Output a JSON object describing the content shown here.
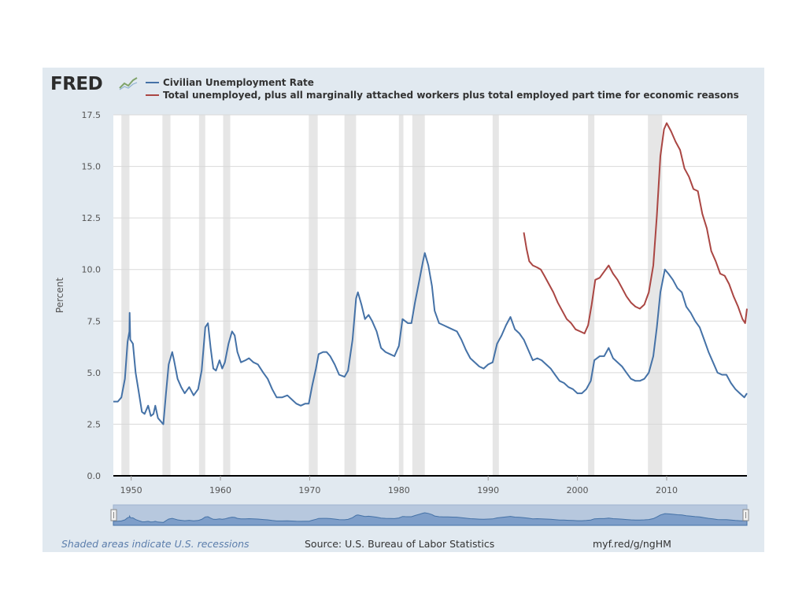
{
  "header": {
    "logo_text": "FRED",
    "logo_icon": "fred-trend-icon"
  },
  "footer": {
    "recession_note": "Shaded areas indicate U.S. recessions",
    "source": "Source: U.S. Bureau of Labor Statistics",
    "link": "myf.red/g/ngHM"
  },
  "colors": {
    "panel": "#e1e9f0",
    "series_blue": "#4572a7",
    "series_red": "#aa4643",
    "recession": "#e6e6e6"
  },
  "chart_data": {
    "type": "line",
    "title": "",
    "xlabel": "",
    "ylabel": "Percent",
    "xlim": [
      1948,
      2019
    ],
    "ylim": [
      0,
      17.5
    ],
    "yticks": [
      0,
      2.5,
      5,
      7.5,
      10,
      12.5,
      15,
      17.5
    ],
    "ytick_labels": [
      "0.0",
      "2.5",
      "5.0",
      "7.5",
      "10.0",
      "12.5",
      "15.0",
      "17.5"
    ],
    "xticks": [
      1950,
      1960,
      1970,
      1980,
      1990,
      2000,
      2010
    ],
    "grid": true,
    "legend_position": "top-left",
    "recessions": [
      [
        1948.9,
        1949.8
      ],
      [
        1953.5,
        1954.4
      ],
      [
        1957.6,
        1958.3
      ],
      [
        1960.3,
        1961.1
      ],
      [
        1969.9,
        1970.9
      ],
      [
        1973.9,
        1975.2
      ],
      [
        1980.0,
        1980.5
      ],
      [
        1981.5,
        1982.9
      ],
      [
        1990.5,
        1991.2
      ],
      [
        2001.2,
        2001.9
      ],
      [
        2007.9,
        2009.5
      ]
    ],
    "series": [
      {
        "name": "Civilian Unemployment Rate",
        "color": "#4572a7",
        "points": [
          [
            1948.0,
            3.6
          ],
          [
            1948.5,
            3.6
          ],
          [
            1948.9,
            3.8
          ],
          [
            1949.3,
            4.7
          ],
          [
            1949.6,
            6.5
          ],
          [
            1949.8,
            7.0
          ],
          [
            1949.83,
            7.9
          ],
          [
            1949.9,
            6.6
          ],
          [
            1950.2,
            6.4
          ],
          [
            1950.5,
            5.0
          ],
          [
            1950.8,
            4.2
          ],
          [
            1951.2,
            3.1
          ],
          [
            1951.5,
            3.0
          ],
          [
            1951.9,
            3.4
          ],
          [
            1952.2,
            2.9
          ],
          [
            1952.5,
            3.0
          ],
          [
            1952.7,
            3.4
          ],
          [
            1953.0,
            2.8
          ],
          [
            1953.4,
            2.6
          ],
          [
            1953.6,
            2.5
          ],
          [
            1953.9,
            4.0
          ],
          [
            1954.2,
            5.4
          ],
          [
            1954.6,
            6.0
          ],
          [
            1954.8,
            5.6
          ],
          [
            1955.2,
            4.7
          ],
          [
            1955.6,
            4.3
          ],
          [
            1956.0,
            4.0
          ],
          [
            1956.5,
            4.3
          ],
          [
            1957.0,
            3.9
          ],
          [
            1957.5,
            4.2
          ],
          [
            1957.9,
            5.1
          ],
          [
            1958.3,
            7.2
          ],
          [
            1958.6,
            7.4
          ],
          [
            1958.9,
            6.2
          ],
          [
            1959.2,
            5.2
          ],
          [
            1959.5,
            5.1
          ],
          [
            1959.9,
            5.6
          ],
          [
            1960.2,
            5.2
          ],
          [
            1960.5,
            5.5
          ],
          [
            1960.9,
            6.4
          ],
          [
            1961.3,
            7.0
          ],
          [
            1961.6,
            6.8
          ],
          [
            1961.9,
            6.0
          ],
          [
            1962.3,
            5.5
          ],
          [
            1962.8,
            5.6
          ],
          [
            1963.2,
            5.7
          ],
          [
            1963.7,
            5.5
          ],
          [
            1964.2,
            5.4
          ],
          [
            1964.8,
            5.0
          ],
          [
            1965.3,
            4.7
          ],
          [
            1965.8,
            4.2
          ],
          [
            1966.3,
            3.8
          ],
          [
            1966.9,
            3.8
          ],
          [
            1967.5,
            3.9
          ],
          [
            1968.0,
            3.7
          ],
          [
            1968.5,
            3.5
          ],
          [
            1969.0,
            3.4
          ],
          [
            1969.5,
            3.5
          ],
          [
            1969.9,
            3.5
          ],
          [
            1970.3,
            4.4
          ],
          [
            1970.7,
            5.2
          ],
          [
            1971.0,
            5.9
          ],
          [
            1971.5,
            6.0
          ],
          [
            1971.9,
            6.0
          ],
          [
            1972.3,
            5.8
          ],
          [
            1972.8,
            5.4
          ],
          [
            1973.3,
            4.9
          ],
          [
            1973.9,
            4.8
          ],
          [
            1974.3,
            5.1
          ],
          [
            1974.8,
            6.6
          ],
          [
            1975.2,
            8.6
          ],
          [
            1975.4,
            8.9
          ],
          [
            1975.8,
            8.3
          ],
          [
            1976.2,
            7.6
          ],
          [
            1976.6,
            7.8
          ],
          [
            1977.0,
            7.5
          ],
          [
            1977.5,
            7.0
          ],
          [
            1978.0,
            6.2
          ],
          [
            1978.5,
            6.0
          ],
          [
            1979.0,
            5.9
          ],
          [
            1979.5,
            5.8
          ],
          [
            1980.0,
            6.3
          ],
          [
            1980.4,
            7.6
          ],
          [
            1980.7,
            7.5
          ],
          [
            1981.0,
            7.4
          ],
          [
            1981.4,
            7.4
          ],
          [
            1981.8,
            8.4
          ],
          [
            1982.3,
            9.5
          ],
          [
            1982.7,
            10.4
          ],
          [
            1982.9,
            10.8
          ],
          [
            1983.3,
            10.2
          ],
          [
            1983.7,
            9.2
          ],
          [
            1984.0,
            8.0
          ],
          [
            1984.5,
            7.4
          ],
          [
            1985.0,
            7.3
          ],
          [
            1985.5,
            7.2
          ],
          [
            1986.0,
            7.1
          ],
          [
            1986.5,
            7.0
          ],
          [
            1987.0,
            6.6
          ],
          [
            1987.5,
            6.1
          ],
          [
            1988.0,
            5.7
          ],
          [
            1988.5,
            5.5
          ],
          [
            1989.0,
            5.3
          ],
          [
            1989.5,
            5.2
          ],
          [
            1990.0,
            5.4
          ],
          [
            1990.5,
            5.5
          ],
          [
            1991.0,
            6.4
          ],
          [
            1991.5,
            6.8
          ],
          [
            1992.0,
            7.3
          ],
          [
            1992.5,
            7.7
          ],
          [
            1993.0,
            7.1
          ],
          [
            1993.5,
            6.9
          ],
          [
            1994.0,
            6.6
          ],
          [
            1994.5,
            6.1
          ],
          [
            1995.0,
            5.6
          ],
          [
            1995.5,
            5.7
          ],
          [
            1996.0,
            5.6
          ],
          [
            1996.5,
            5.4
          ],
          [
            1997.0,
            5.2
          ],
          [
            1997.5,
            4.9
          ],
          [
            1998.0,
            4.6
          ],
          [
            1998.5,
            4.5
          ],
          [
            1999.0,
            4.3
          ],
          [
            1999.5,
            4.2
          ],
          [
            2000.0,
            4.0
          ],
          [
            2000.5,
            4.0
          ],
          [
            2001.0,
            4.2
          ],
          [
            2001.5,
            4.6
          ],
          [
            2001.9,
            5.6
          ],
          [
            2002.5,
            5.8
          ],
          [
            2003.0,
            5.8
          ],
          [
            2003.5,
            6.2
          ],
          [
            2004.0,
            5.7
          ],
          [
            2004.5,
            5.5
          ],
          [
            2005.0,
            5.3
          ],
          [
            2005.5,
            5.0
          ],
          [
            2006.0,
            4.7
          ],
          [
            2006.5,
            4.6
          ],
          [
            2007.0,
            4.6
          ],
          [
            2007.5,
            4.7
          ],
          [
            2008.0,
            5.0
          ],
          [
            2008.5,
            5.8
          ],
          [
            2008.9,
            7.2
          ],
          [
            2009.3,
            8.9
          ],
          [
            2009.8,
            10.0
          ],
          [
            2010.2,
            9.8
          ],
          [
            2010.7,
            9.5
          ],
          [
            2011.2,
            9.1
          ],
          [
            2011.7,
            8.9
          ],
          [
            2012.2,
            8.2
          ],
          [
            2012.7,
            7.9
          ],
          [
            2013.2,
            7.5
          ],
          [
            2013.7,
            7.2
          ],
          [
            2014.2,
            6.6
          ],
          [
            2014.7,
            6.0
          ],
          [
            2015.2,
            5.5
          ],
          [
            2015.7,
            5.0
          ],
          [
            2016.2,
            4.9
          ],
          [
            2016.7,
            4.9
          ],
          [
            2017.2,
            4.5
          ],
          [
            2017.7,
            4.2
          ],
          [
            2018.2,
            4.0
          ],
          [
            2018.7,
            3.8
          ],
          [
            2019.0,
            4.0
          ]
        ]
      },
      {
        "name": "Total unemployed, plus all marginally attached workers plus total employed part time for economic reasons",
        "color": "#aa4643",
        "points": [
          [
            1994.0,
            11.8
          ],
          [
            1994.3,
            11.0
          ],
          [
            1994.6,
            10.4
          ],
          [
            1995.0,
            10.2
          ],
          [
            1995.5,
            10.1
          ],
          [
            1995.9,
            10.0
          ],
          [
            1996.3,
            9.7
          ],
          [
            1996.8,
            9.3
          ],
          [
            1997.3,
            8.9
          ],
          [
            1997.8,
            8.4
          ],
          [
            1998.3,
            8.0
          ],
          [
            1998.8,
            7.6
          ],
          [
            1999.3,
            7.4
          ],
          [
            1999.8,
            7.1
          ],
          [
            2000.3,
            7.0
          ],
          [
            2000.8,
            6.9
          ],
          [
            2001.2,
            7.3
          ],
          [
            2001.6,
            8.3
          ],
          [
            2002.0,
            9.5
          ],
          [
            2002.5,
            9.6
          ],
          [
            2003.0,
            9.9
          ],
          [
            2003.5,
            10.2
          ],
          [
            2004.0,
            9.8
          ],
          [
            2004.5,
            9.5
          ],
          [
            2005.0,
            9.1
          ],
          [
            2005.5,
            8.7
          ],
          [
            2006.0,
            8.4
          ],
          [
            2006.5,
            8.2
          ],
          [
            2007.0,
            8.1
          ],
          [
            2007.5,
            8.3
          ],
          [
            2008.0,
            8.9
          ],
          [
            2008.5,
            10.2
          ],
          [
            2008.9,
            12.6
          ],
          [
            2009.3,
            15.5
          ],
          [
            2009.7,
            16.8
          ],
          [
            2010.0,
            17.1
          ],
          [
            2010.5,
            16.7
          ],
          [
            2011.0,
            16.2
          ],
          [
            2011.5,
            15.8
          ],
          [
            2012.0,
            14.9
          ],
          [
            2012.5,
            14.5
          ],
          [
            2013.0,
            13.9
          ],
          [
            2013.5,
            13.8
          ],
          [
            2014.0,
            12.7
          ],
          [
            2014.5,
            12.0
          ],
          [
            2015.0,
            10.9
          ],
          [
            2015.5,
            10.4
          ],
          [
            2016.0,
            9.8
          ],
          [
            2016.5,
            9.7
          ],
          [
            2017.0,
            9.3
          ],
          [
            2017.5,
            8.7
          ],
          [
            2018.0,
            8.2
          ],
          [
            2018.5,
            7.6
          ],
          [
            2018.8,
            7.4
          ],
          [
            2019.0,
            8.1
          ]
        ]
      }
    ]
  }
}
